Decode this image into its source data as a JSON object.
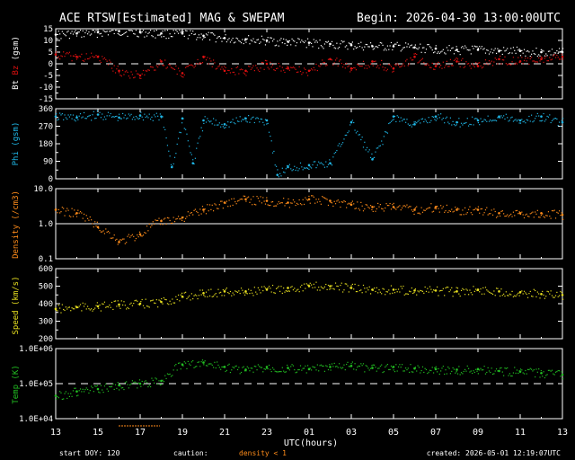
{
  "header": {
    "title": "ACE RTSW[Estimated] MAG & SWEPAM",
    "begin": "Begin: 2026-04-30 13:00:00UTC"
  },
  "footer": {
    "start_doy": "start DOY: 120",
    "caution_label": "caution:",
    "caution_note": "density < 1",
    "created": "created: 2026-05-01 12:19:07UTC"
  },
  "colors": {
    "background": "#000000",
    "axes": "#ffffff",
    "bt": "#ffffff",
    "bz": "#e01010",
    "phi": "#1fb6e6",
    "density": "#ff8c1a",
    "speed": "#e8e020",
    "temp": "#22c022",
    "caution": "#ff8c1a"
  },
  "chart_data": [
    {
      "type": "scatter",
      "panel": "mag",
      "ylabel_parts": [
        "Bt",
        "Bz",
        "(gsm)"
      ],
      "ylim": [
        -15,
        15
      ],
      "yticks": [
        "15",
        "10",
        "5",
        "0",
        "-5",
        "-10",
        "-15"
      ],
      "yticks_values": [
        15,
        10,
        5,
        0,
        -5,
        -10,
        -15
      ],
      "ref_line": 0,
      "series": [
        {
          "name": "Bt",
          "x": [
            0,
            1,
            2,
            3,
            4,
            5,
            6,
            7,
            8,
            9,
            10,
            11,
            12,
            13,
            14,
            15,
            16,
            17,
            18,
            19,
            20,
            21,
            22,
            23,
            24
          ],
          "values": [
            12.5,
            13,
            13.5,
            14,
            13.5,
            13,
            13,
            12,
            11,
            10.5,
            10,
            9.5,
            9,
            8.5,
            8,
            7.5,
            7.5,
            7,
            6.5,
            6,
            6,
            5.5,
            5.5,
            5,
            5
          ]
        },
        {
          "name": "Bz",
          "x": [
            0,
            1,
            2,
            3,
            4,
            5,
            6,
            7,
            8,
            9,
            10,
            11,
            12,
            13,
            14,
            15,
            16,
            17,
            18,
            19,
            20,
            21,
            22,
            23,
            24
          ],
          "values": [
            4,
            3,
            3,
            -3,
            -5,
            1,
            -4,
            3,
            -3,
            -3,
            0,
            -2,
            -3,
            2,
            -2,
            1,
            -2,
            3,
            -1,
            1,
            -1,
            2,
            1,
            2,
            3
          ]
        }
      ]
    },
    {
      "type": "scatter",
      "panel": "phi",
      "ylabel": "Phi (gsm)",
      "ylim": [
        0,
        360
      ],
      "yticks": [
        "360",
        "270",
        "180",
        "90",
        "0"
      ],
      "yticks_values": [
        360,
        270,
        180,
        90,
        0
      ],
      "series": [
        {
          "name": "Phi",
          "x": [
            0,
            1,
            2,
            3,
            4,
            5,
            5.5,
            6,
            6.5,
            7,
            8,
            9,
            10,
            10.5,
            11,
            12,
            13,
            14,
            15,
            16,
            17,
            18,
            19,
            20,
            21,
            22,
            23,
            24
          ],
          "values": [
            320,
            315,
            330,
            315,
            325,
            320,
            60,
            310,
            80,
            300,
            280,
            310,
            300,
            20,
            60,
            70,
            80,
            290,
            100,
            320,
            280,
            320,
            290,
            300,
            320,
            300,
            320,
            290
          ]
        }
      ]
    },
    {
      "type": "scatter",
      "panel": "density",
      "ylabel": "Density (/cm3)",
      "yscale": "log",
      "ylim": [
        0.1,
        10
      ],
      "yticks": [
        "10.0",
        "1.0",
        "0.1"
      ],
      "yticks_values": [
        10,
        1,
        0.1
      ],
      "ref_line": 1,
      "series": [
        {
          "name": "Density",
          "x": [
            0,
            1,
            2,
            3,
            4,
            5,
            6,
            7,
            8,
            9,
            10,
            11,
            12,
            13,
            14,
            15,
            16,
            17,
            18,
            19,
            20,
            21,
            22,
            23,
            24
          ],
          "values": [
            2.5,
            2,
            0.8,
            0.3,
            0.5,
            1.2,
            1.5,
            2.5,
            4,
            5,
            4.5,
            4,
            5,
            4.5,
            3.5,
            3,
            3,
            2.5,
            3,
            2.5,
            2.5,
            2,
            2,
            2,
            1.8
          ]
        }
      ]
    },
    {
      "type": "scatter",
      "panel": "speed",
      "ylabel": "Speed (km/s)",
      "ylim": [
        200,
        600
      ],
      "yticks": [
        "600",
        "500",
        "400",
        "300",
        "200"
      ],
      "yticks_values": [
        600,
        500,
        400,
        300,
        200
      ],
      "series": [
        {
          "name": "Speed",
          "x": [
            0,
            1,
            2,
            3,
            4,
            5,
            6,
            7,
            8,
            9,
            10,
            11,
            12,
            13,
            14,
            15,
            16,
            17,
            18,
            19,
            20,
            21,
            22,
            23,
            24
          ],
          "values": [
            370,
            380,
            385,
            395,
            400,
            410,
            440,
            460,
            470,
            470,
            480,
            490,
            500,
            500,
            490,
            480,
            480,
            475,
            475,
            470,
            480,
            470,
            465,
            455,
            450
          ]
        }
      ]
    },
    {
      "type": "scatter",
      "panel": "temp",
      "ylabel": "Temp (K)",
      "yscale": "log",
      "ylim": [
        10000,
        1000000
      ],
      "yticks": [
        "1.0E+06",
        "1.0E+05",
        "1.0E+04"
      ],
      "yticks_values": [
        1000000,
        100000,
        10000
      ],
      "ref_line": 100000,
      "series": [
        {
          "name": "Temp",
          "x": [
            0,
            1,
            2,
            3,
            4,
            5,
            6,
            7,
            8,
            9,
            10,
            11,
            12,
            13,
            14,
            15,
            16,
            17,
            18,
            19,
            20,
            21,
            22,
            23,
            24
          ],
          "values": [
            45000,
            60000,
            70000,
            90000,
            100000,
            120000,
            350000,
            400000,
            300000,
            250000,
            300000,
            280000,
            260000,
            300000,
            320000,
            280000,
            300000,
            270000,
            260000,
            250000,
            260000,
            230000,
            220000,
            200000,
            180000
          ]
        }
      ]
    }
  ],
  "x_axis": {
    "label": "UTC(hours)",
    "ticks": [
      "13",
      "15",
      "17",
      "19",
      "21",
      "23",
      "01",
      "03",
      "05",
      "07",
      "09",
      "11",
      "13"
    ],
    "tick_hours": [
      0,
      2,
      4,
      6,
      8,
      10,
      12,
      14,
      16,
      18,
      20,
      22,
      24
    ],
    "range_hours": [
      0,
      24
    ]
  }
}
